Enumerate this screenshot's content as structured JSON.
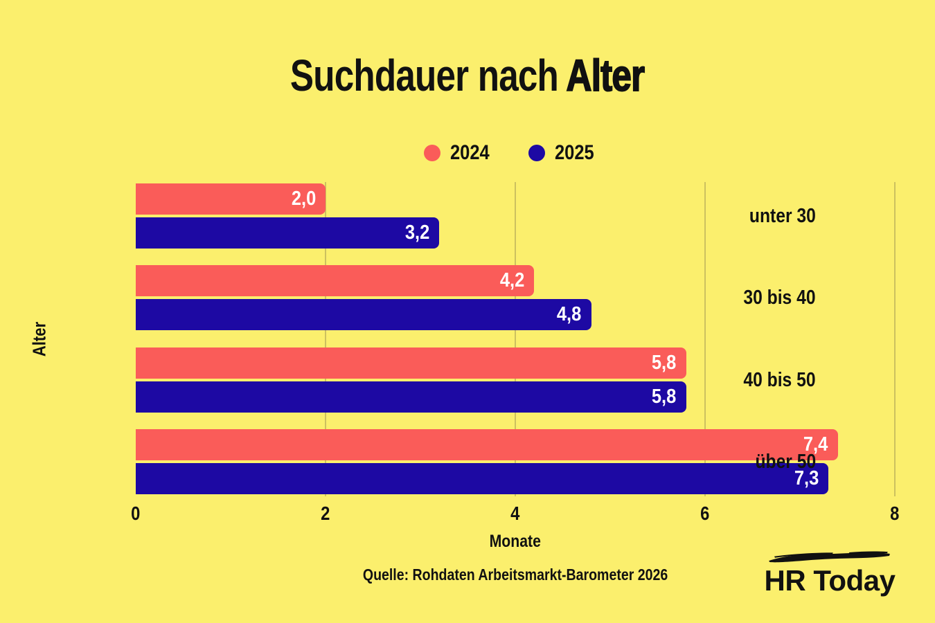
{
  "title": {
    "prefix": "Suchdauer nach ",
    "emphasis": "Alter"
  },
  "legend": [
    {
      "label": "2024",
      "color": "#FA5C59"
    },
    {
      "label": "2025",
      "color": "#1D09A3"
    }
  ],
  "chart_data": {
    "type": "bar",
    "orientation": "horizontal",
    "title": "Suchdauer nach Alter",
    "categories": [
      "unter 30",
      "30 bis 40",
      "40 bis 50",
      "über 50"
    ],
    "series": [
      {
        "name": "2024",
        "color": "#FA5C59",
        "values": [
          2.0,
          4.2,
          5.8,
          7.4
        ],
        "labels": [
          "2,0",
          "4,2",
          "5,8",
          "7,4"
        ]
      },
      {
        "name": "2025",
        "color": "#1D09A3",
        "values": [
          3.2,
          4.8,
          5.8,
          7.3
        ],
        "labels": [
          "3,2",
          "4,8",
          "5,8",
          "7,3"
        ]
      }
    ],
    "xlabel": "Monate",
    "ylabel": "Alter",
    "xlim": [
      0,
      8
    ],
    "xticks": [
      0,
      2,
      4,
      6,
      8
    ],
    "xtick_labels": [
      "0",
      "2",
      "4",
      "6",
      "8"
    ],
    "grid": "vertical",
    "legend_position": "top"
  },
  "source": "Quelle: Rohdaten Arbeitsmarkt-Barometer 2026",
  "logo": {
    "text": "HR Today"
  },
  "colors": {
    "background": "#FBEF6D",
    "bar_2024": "#FA5C59",
    "bar_2025": "#1D09A3",
    "text": "#111111",
    "grid": "#CCC15F",
    "value_label": "#FFFFFF"
  }
}
